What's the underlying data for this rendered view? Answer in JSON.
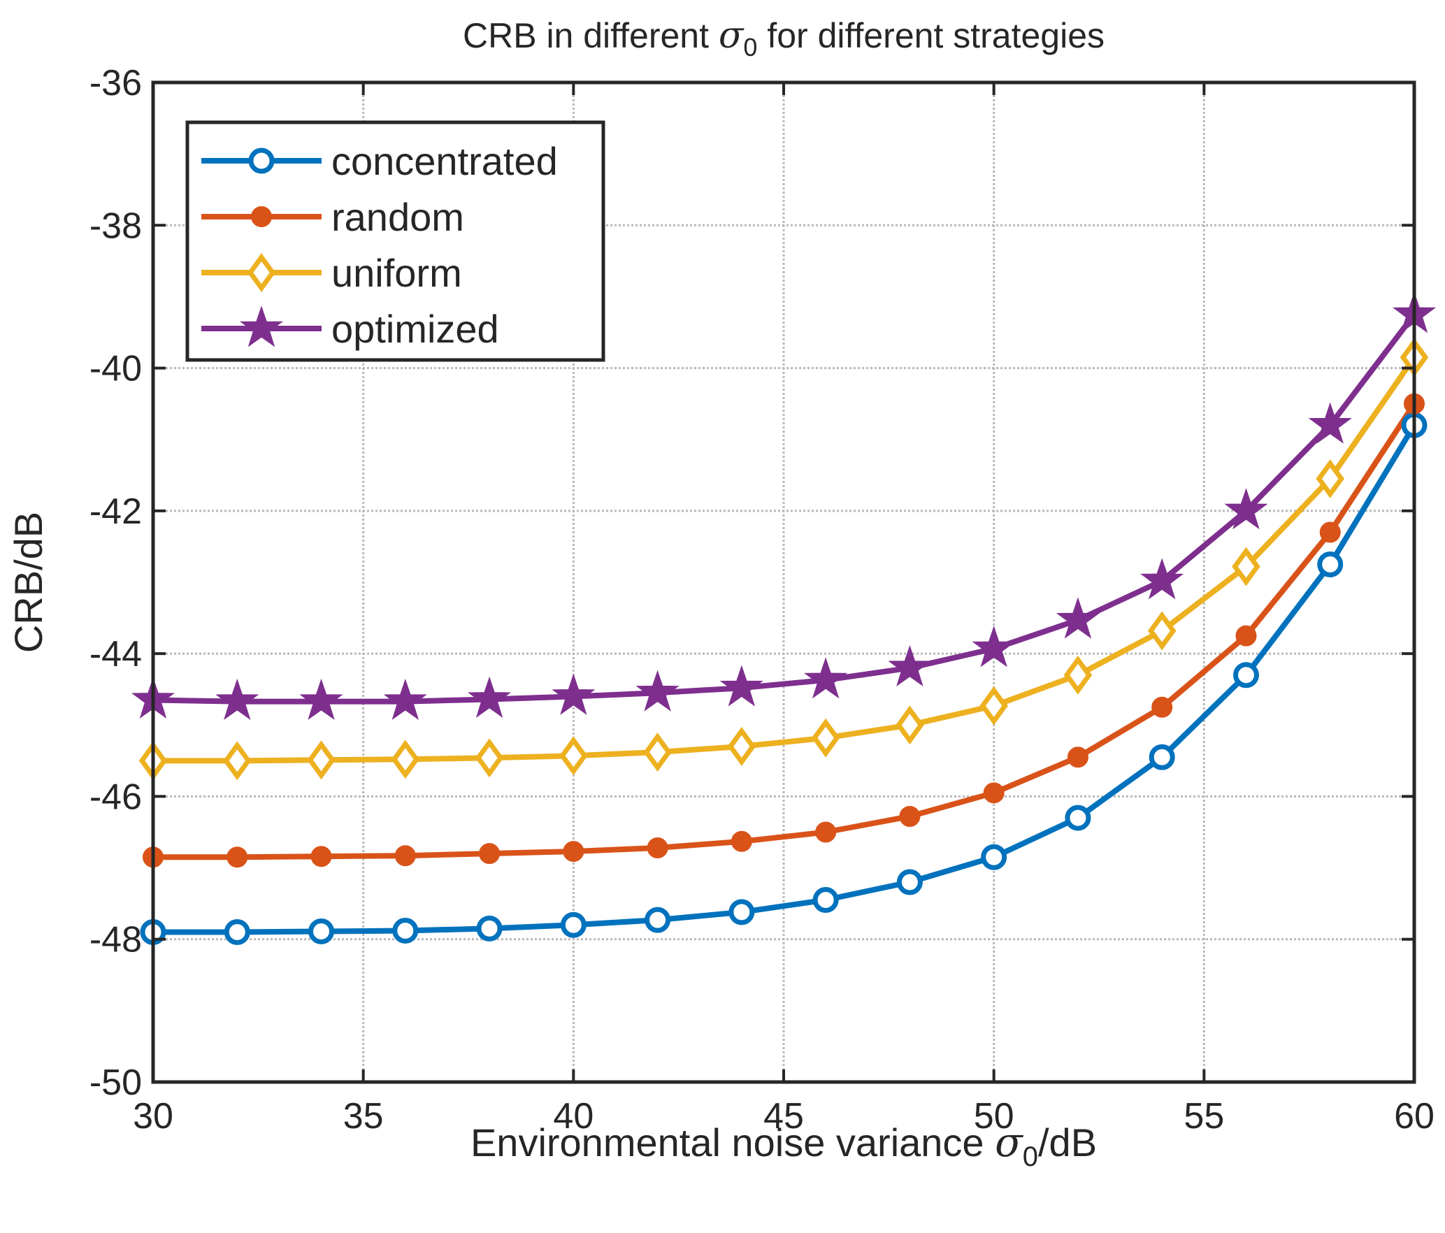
{
  "chart_data": {
    "type": "line",
    "title_prefix": "CRB in different ",
    "title_symbol": "σ",
    "title_subscript": "0",
    "title_suffix": " for different strategies",
    "xlabel_prefix": "Environmental noise variance ",
    "xlabel_symbol": "σ",
    "xlabel_subscript": "0",
    "xlabel_suffix": "/dB",
    "ylabel": "CRB/dB",
    "xlim": [
      30,
      60
    ],
    "ylim": [
      -50,
      -36
    ],
    "xticks": [
      30,
      35,
      40,
      45,
      50,
      55,
      60
    ],
    "yticks": [
      -50,
      -48,
      -46,
      -44,
      -42,
      -40,
      -38,
      -36
    ],
    "grid": true,
    "legend_position": "top-left",
    "x": [
      30,
      32,
      34,
      36,
      38,
      40,
      42,
      44,
      46,
      48,
      50,
      52,
      54,
      56,
      58,
      60
    ],
    "series": [
      {
        "name": "concentrated",
        "color": "#0072BD",
        "marker": "circle",
        "values": [
          -47.9,
          -47.9,
          -47.89,
          -47.88,
          -47.85,
          -47.8,
          -47.73,
          -47.62,
          -47.45,
          -47.2,
          -46.85,
          -46.3,
          -45.45,
          -44.3,
          -42.75,
          -40.8
        ]
      },
      {
        "name": "random",
        "color": "#D95319",
        "marker": "dot",
        "values": [
          -46.85,
          -46.85,
          -46.84,
          -46.83,
          -46.8,
          -46.77,
          -46.72,
          -46.63,
          -46.5,
          -46.28,
          -45.95,
          -45.45,
          -44.75,
          -43.75,
          -42.3,
          -40.5
        ]
      },
      {
        "name": "uniform",
        "color": "#EDB120",
        "marker": "diamond",
        "values": [
          -45.5,
          -45.5,
          -45.49,
          -45.48,
          -45.46,
          -45.43,
          -45.38,
          -45.3,
          -45.18,
          -45.0,
          -44.73,
          -44.3,
          -43.68,
          -42.78,
          -41.55,
          -39.85
        ]
      },
      {
        "name": "optimized",
        "color": "#7E2F8E",
        "marker": "star",
        "values": [
          -44.65,
          -44.67,
          -44.67,
          -44.67,
          -44.64,
          -44.6,
          -44.55,
          -44.48,
          -44.37,
          -44.2,
          -43.93,
          -43.53,
          -42.98,
          -42.0,
          -40.8,
          -39.25
        ]
      }
    ]
  }
}
